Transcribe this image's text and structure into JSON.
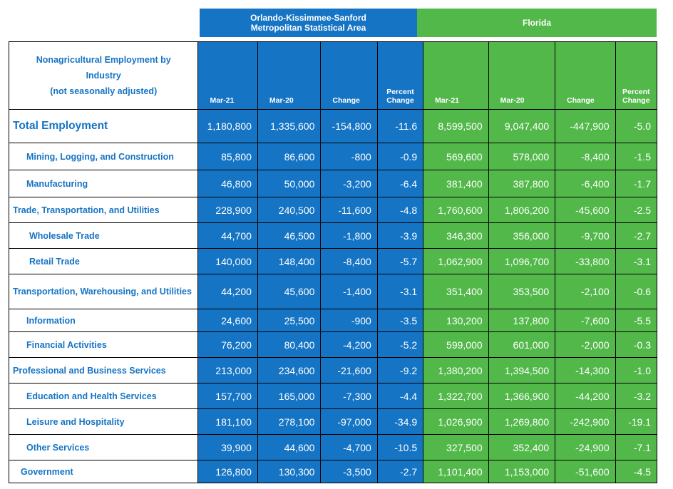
{
  "groups": {
    "orlando": "Orlando-Kissimmee-Sanford\nMetropolitan Statistical Area",
    "florida": "Florida"
  },
  "colors": {
    "blue": "#1574c4",
    "green": "#52b84a",
    "title_text": "#1574c4"
  },
  "table": {
    "title": "Nonagricultural Employment by\nIndustry\n(not seasonally adjusted)",
    "columns": [
      "Mar-21",
      "Mar-20",
      "Change",
      "Percent\nChange",
      "Mar-21",
      "Mar-20",
      "Change",
      "Percent\nChange"
    ],
    "rows": [
      {
        "industry": "Total Employment",
        "values": [
          "1,180,800",
          "1,335,600",
          "-154,800",
          "-11.6",
          "8,599,500",
          "9,047,400",
          "-447,900",
          "-5.0"
        ]
      },
      {
        "industry": "Mining, Logging, and Construction",
        "values": [
          "85,800",
          "86,600",
          "-800",
          "-0.9",
          "569,600",
          "578,000",
          "-8,400",
          "-1.5"
        ]
      },
      {
        "industry": "Manufacturing",
        "values": [
          "46,800",
          "50,000",
          "-3,200",
          "-6.4",
          "381,400",
          "387,800",
          "-6,400",
          "-1.7"
        ]
      },
      {
        "industry": "Trade, Transportation, and Utilities",
        "values": [
          "228,900",
          "240,500",
          "-11,600",
          "-4.8",
          "1,760,600",
          "1,806,200",
          "-45,600",
          "-2.5"
        ]
      },
      {
        "industry": "Wholesale Trade",
        "values": [
          "44,700",
          "46,500",
          "-1,800",
          "-3.9",
          "346,300",
          "356,000",
          "-9,700",
          "-2.7"
        ]
      },
      {
        "industry": "Retail Trade",
        "values": [
          "140,000",
          "148,400",
          "-8,400",
          "-5.7",
          "1,062,900",
          "1,096,700",
          "-33,800",
          "-3.1"
        ]
      },
      {
        "industry": "Transportation, Warehousing, and Utilities",
        "values": [
          "44,200",
          "45,600",
          "-1,400",
          "-3.1",
          "351,400",
          "353,500",
          "-2,100",
          "-0.6"
        ]
      },
      {
        "industry": "Information",
        "values": [
          "24,600",
          "25,500",
          "-900",
          "-3.5",
          "130,200",
          "137,800",
          "-7,600",
          "-5.5"
        ]
      },
      {
        "industry": "Financial Activities",
        "values": [
          "76,200",
          "80,400",
          "-4,200",
          "-5.2",
          "599,000",
          "601,000",
          "-2,000",
          "-0.3"
        ]
      },
      {
        "industry": "Professional and Business Services",
        "values": [
          "213,000",
          "234,600",
          "-21,600",
          "-9.2",
          "1,380,200",
          "1,394,500",
          "-14,300",
          "-1.0"
        ]
      },
      {
        "industry": "Education and Health Services",
        "values": [
          "157,700",
          "165,000",
          "-7,300",
          "-4.4",
          "1,322,700",
          "1,366,900",
          "-44,200",
          "-3.2"
        ]
      },
      {
        "industry": "Leisure and Hospitality",
        "values": [
          "181,100",
          "278,100",
          "-97,000",
          "-34.9",
          "1,026,900",
          "1,269,800",
          "-242,900",
          "-19.1"
        ]
      },
      {
        "industry": "Other Services",
        "values": [
          "39,900",
          "44,600",
          "-4,700",
          "-10.5",
          "327,500",
          "352,400",
          "-24,900",
          "-7.1"
        ]
      },
      {
        "industry": "Government",
        "values": [
          "126,800",
          "130,300",
          "-3,500",
          "-2.7",
          "1,101,400",
          "1,153,000",
          "-51,600",
          "-4.5"
        ]
      }
    ]
  }
}
